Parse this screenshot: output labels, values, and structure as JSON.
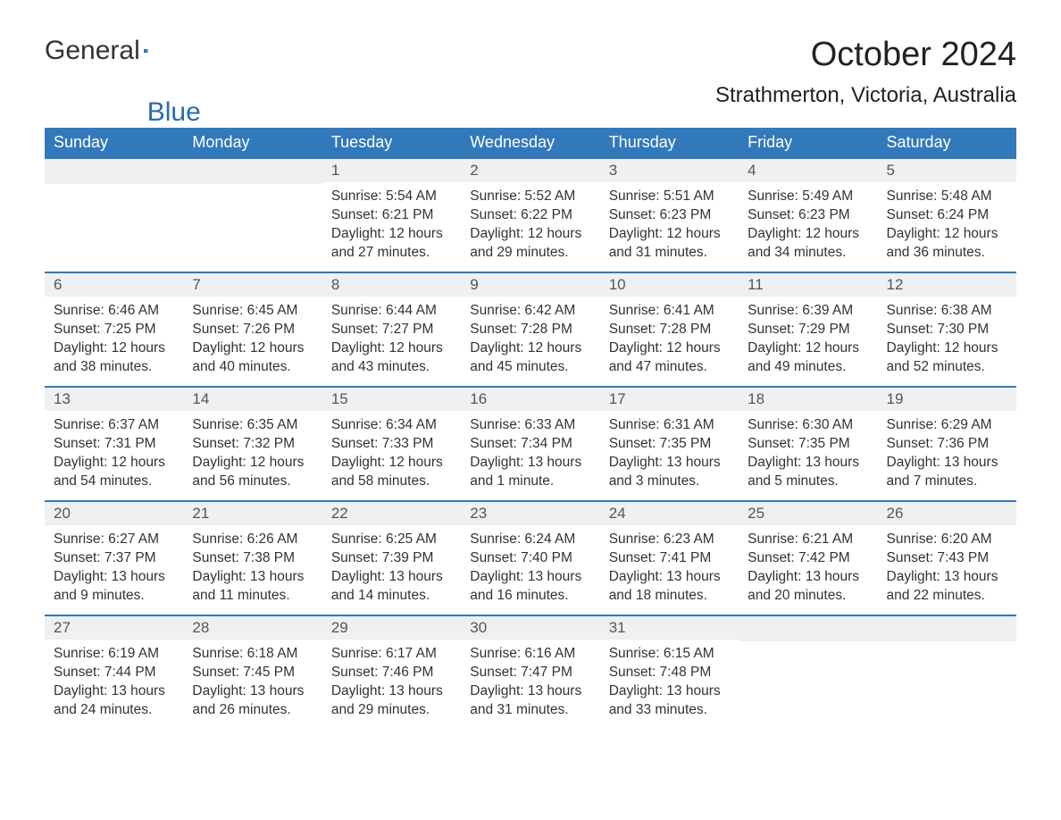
{
  "brand": {
    "part1": "General",
    "part2": "Blue",
    "color_primary": "#2a6bb0"
  },
  "title": "October 2024",
  "location": "Strathmerton, Victoria, Australia",
  "weekday_headers": [
    "Sunday",
    "Monday",
    "Tuesday",
    "Wednesday",
    "Thursday",
    "Friday",
    "Saturday"
  ],
  "styling": {
    "header_bg": "#3279bb",
    "header_text": "#ffffff",
    "daynum_bg": "#eef0f2",
    "row_border": "#3279bb",
    "body_text": "#333333",
    "page_bg": "#ffffff",
    "title_fontsize": 38,
    "location_fontsize": 24,
    "header_fontsize": 18,
    "cell_fontsize": 15.5
  },
  "weeks": [
    [
      null,
      null,
      {
        "n": "1",
        "sr": "Sunrise: 5:54 AM",
        "ss": "Sunset: 6:21 PM",
        "d1": "Daylight: 12 hours",
        "d2": "and 27 minutes."
      },
      {
        "n": "2",
        "sr": "Sunrise: 5:52 AM",
        "ss": "Sunset: 6:22 PM",
        "d1": "Daylight: 12 hours",
        "d2": "and 29 minutes."
      },
      {
        "n": "3",
        "sr": "Sunrise: 5:51 AM",
        "ss": "Sunset: 6:23 PM",
        "d1": "Daylight: 12 hours",
        "d2": "and 31 minutes."
      },
      {
        "n": "4",
        "sr": "Sunrise: 5:49 AM",
        "ss": "Sunset: 6:23 PM",
        "d1": "Daylight: 12 hours",
        "d2": "and 34 minutes."
      },
      {
        "n": "5",
        "sr": "Sunrise: 5:48 AM",
        "ss": "Sunset: 6:24 PM",
        "d1": "Daylight: 12 hours",
        "d2": "and 36 minutes."
      }
    ],
    [
      {
        "n": "6",
        "sr": "Sunrise: 6:46 AM",
        "ss": "Sunset: 7:25 PM",
        "d1": "Daylight: 12 hours",
        "d2": "and 38 minutes."
      },
      {
        "n": "7",
        "sr": "Sunrise: 6:45 AM",
        "ss": "Sunset: 7:26 PM",
        "d1": "Daylight: 12 hours",
        "d2": "and 40 minutes."
      },
      {
        "n": "8",
        "sr": "Sunrise: 6:44 AM",
        "ss": "Sunset: 7:27 PM",
        "d1": "Daylight: 12 hours",
        "d2": "and 43 minutes."
      },
      {
        "n": "9",
        "sr": "Sunrise: 6:42 AM",
        "ss": "Sunset: 7:28 PM",
        "d1": "Daylight: 12 hours",
        "d2": "and 45 minutes."
      },
      {
        "n": "10",
        "sr": "Sunrise: 6:41 AM",
        "ss": "Sunset: 7:28 PM",
        "d1": "Daylight: 12 hours",
        "d2": "and 47 minutes."
      },
      {
        "n": "11",
        "sr": "Sunrise: 6:39 AM",
        "ss": "Sunset: 7:29 PM",
        "d1": "Daylight: 12 hours",
        "d2": "and 49 minutes."
      },
      {
        "n": "12",
        "sr": "Sunrise: 6:38 AM",
        "ss": "Sunset: 7:30 PM",
        "d1": "Daylight: 12 hours",
        "d2": "and 52 minutes."
      }
    ],
    [
      {
        "n": "13",
        "sr": "Sunrise: 6:37 AM",
        "ss": "Sunset: 7:31 PM",
        "d1": "Daylight: 12 hours",
        "d2": "and 54 minutes."
      },
      {
        "n": "14",
        "sr": "Sunrise: 6:35 AM",
        "ss": "Sunset: 7:32 PM",
        "d1": "Daylight: 12 hours",
        "d2": "and 56 minutes."
      },
      {
        "n": "15",
        "sr": "Sunrise: 6:34 AM",
        "ss": "Sunset: 7:33 PM",
        "d1": "Daylight: 12 hours",
        "d2": "and 58 minutes."
      },
      {
        "n": "16",
        "sr": "Sunrise: 6:33 AM",
        "ss": "Sunset: 7:34 PM",
        "d1": "Daylight: 13 hours",
        "d2": "and 1 minute."
      },
      {
        "n": "17",
        "sr": "Sunrise: 6:31 AM",
        "ss": "Sunset: 7:35 PM",
        "d1": "Daylight: 13 hours",
        "d2": "and 3 minutes."
      },
      {
        "n": "18",
        "sr": "Sunrise: 6:30 AM",
        "ss": "Sunset: 7:35 PM",
        "d1": "Daylight: 13 hours",
        "d2": "and 5 minutes."
      },
      {
        "n": "19",
        "sr": "Sunrise: 6:29 AM",
        "ss": "Sunset: 7:36 PM",
        "d1": "Daylight: 13 hours",
        "d2": "and 7 minutes."
      }
    ],
    [
      {
        "n": "20",
        "sr": "Sunrise: 6:27 AM",
        "ss": "Sunset: 7:37 PM",
        "d1": "Daylight: 13 hours",
        "d2": "and 9 minutes."
      },
      {
        "n": "21",
        "sr": "Sunrise: 6:26 AM",
        "ss": "Sunset: 7:38 PM",
        "d1": "Daylight: 13 hours",
        "d2": "and 11 minutes."
      },
      {
        "n": "22",
        "sr": "Sunrise: 6:25 AM",
        "ss": "Sunset: 7:39 PM",
        "d1": "Daylight: 13 hours",
        "d2": "and 14 minutes."
      },
      {
        "n": "23",
        "sr": "Sunrise: 6:24 AM",
        "ss": "Sunset: 7:40 PM",
        "d1": "Daylight: 13 hours",
        "d2": "and 16 minutes."
      },
      {
        "n": "24",
        "sr": "Sunrise: 6:23 AM",
        "ss": "Sunset: 7:41 PM",
        "d1": "Daylight: 13 hours",
        "d2": "and 18 minutes."
      },
      {
        "n": "25",
        "sr": "Sunrise: 6:21 AM",
        "ss": "Sunset: 7:42 PM",
        "d1": "Daylight: 13 hours",
        "d2": "and 20 minutes."
      },
      {
        "n": "26",
        "sr": "Sunrise: 6:20 AM",
        "ss": "Sunset: 7:43 PM",
        "d1": "Daylight: 13 hours",
        "d2": "and 22 minutes."
      }
    ],
    [
      {
        "n": "27",
        "sr": "Sunrise: 6:19 AM",
        "ss": "Sunset: 7:44 PM",
        "d1": "Daylight: 13 hours",
        "d2": "and 24 minutes."
      },
      {
        "n": "28",
        "sr": "Sunrise: 6:18 AM",
        "ss": "Sunset: 7:45 PM",
        "d1": "Daylight: 13 hours",
        "d2": "and 26 minutes."
      },
      {
        "n": "29",
        "sr": "Sunrise: 6:17 AM",
        "ss": "Sunset: 7:46 PM",
        "d1": "Daylight: 13 hours",
        "d2": "and 29 minutes."
      },
      {
        "n": "30",
        "sr": "Sunrise: 6:16 AM",
        "ss": "Sunset: 7:47 PM",
        "d1": "Daylight: 13 hours",
        "d2": "and 31 minutes."
      },
      {
        "n": "31",
        "sr": "Sunrise: 6:15 AM",
        "ss": "Sunset: 7:48 PM",
        "d1": "Daylight: 13 hours",
        "d2": "and 33 minutes."
      },
      null,
      null
    ]
  ]
}
